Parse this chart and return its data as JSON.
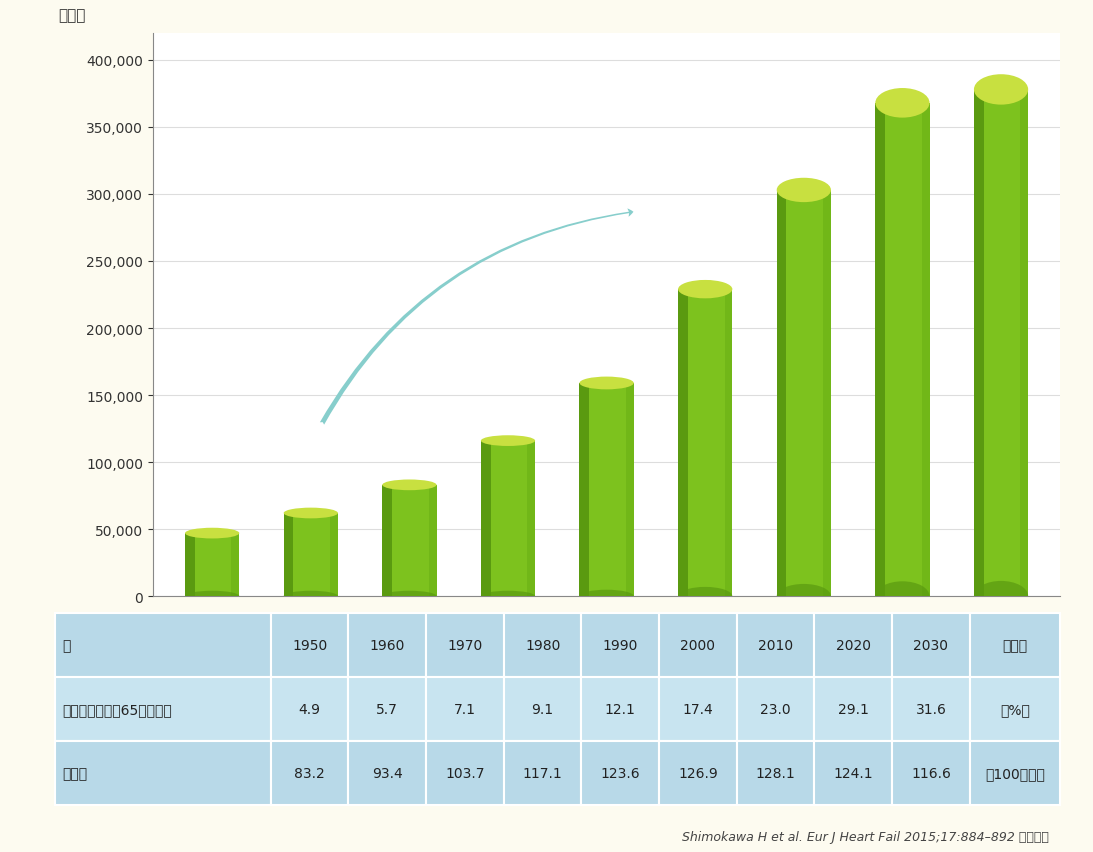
{
  "years": [
    1950,
    1960,
    1970,
    1980,
    1990,
    2000,
    2010,
    2020,
    2030
  ],
  "values": [
    47000,
    62000,
    83000,
    116000,
    159000,
    229000,
    303000,
    368000,
    378000
  ],
  "elderly_ratio": [
    "4.9",
    "5.7",
    "7.1",
    "9.1",
    "12.1",
    "17.4",
    "23.0",
    "29.1",
    "31.6"
  ],
  "population": [
    "83.2",
    "93.4",
    "103.7",
    "117.1",
    "123.6",
    "126.9",
    "128.1",
    "124.1",
    "116.6"
  ],
  "bar_color_body": "#7DC21E",
  "bar_color_dark": "#5A9A10",
  "bar_color_top": "#C8E040",
  "bar_color_right": "#6AB015",
  "fig_bg_color": "#FDFBF0",
  "plot_bg_color": "#FFFFFF",
  "grid_color": "#DDDDDD",
  "ylabel": "（人）",
  "ylim": [
    0,
    420000
  ],
  "yticks": [
    0,
    50000,
    100000,
    150000,
    200000,
    250000,
    300000,
    350000,
    400000
  ],
  "arrow_color": "#87CECC",
  "table_bg0": "#B8D9E8",
  "table_bg1": "#C8E4F0",
  "table_bg2": "#B8D9E8",
  "citation": "Shimokawa H et al. Eur J Heart Fail 2015;17:884–892 より改変",
  "row0_label": "年",
  "row1_label": "高齢者の割合（65歳以上）",
  "row2_label": "総人口",
  "row0_unit": "（年）",
  "row1_unit": "（%）",
  "row2_unit": "（100万人）"
}
